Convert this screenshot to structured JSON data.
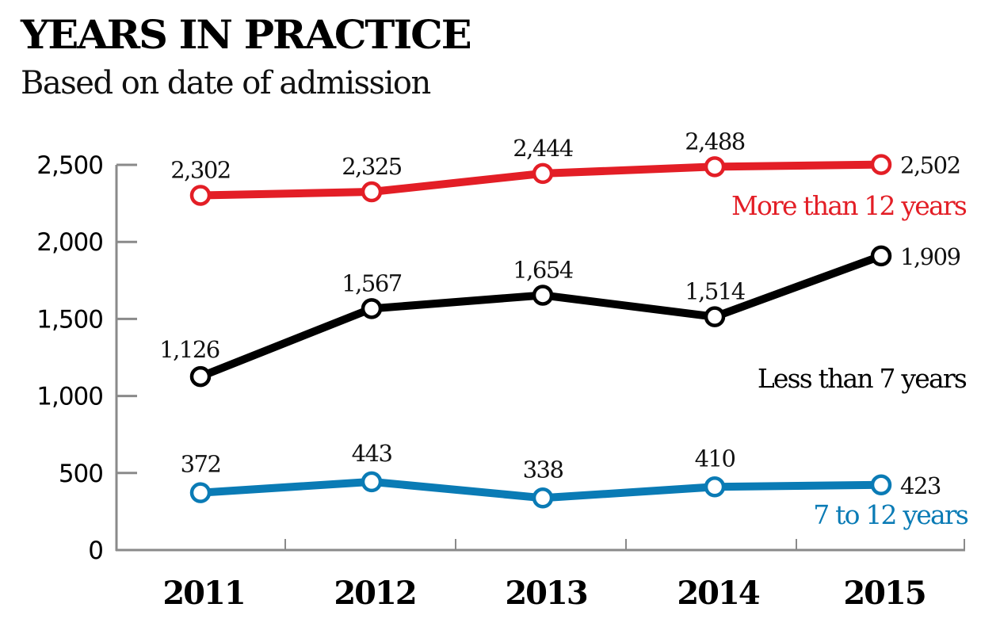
{
  "header": {
    "title": "YEARS IN PRACTICE",
    "subtitle": "Based on date of admission"
  },
  "chart_data": {
    "type": "line",
    "title": "YEARS IN PRACTICE",
    "subtitle": "Based on date of admission",
    "xlabel": "",
    "ylabel": "",
    "x": [
      "2011",
      "2012",
      "2013",
      "2014",
      "2015"
    ],
    "ylim": [
      0,
      2500
    ],
    "yticks": [
      0,
      500,
      1000,
      1500,
      2000,
      2500
    ],
    "ytick_labels": [
      "0",
      "500",
      "1,000",
      "1,500",
      "2,000",
      "2,500"
    ],
    "grid": false,
    "legend": "inline-right",
    "series": [
      {
        "name": "More than 12 years",
        "color": "#e31e26",
        "values": [
          2302,
          2325,
          2444,
          2488,
          2502
        ],
        "labels": [
          "2,302",
          "2,325",
          "2,444",
          "2,488",
          "2,502"
        ]
      },
      {
        "name": "Less than 7 years",
        "color": "#000000",
        "values": [
          1126,
          1567,
          1654,
          1514,
          1909
        ],
        "labels": [
          "1,126",
          "1,567",
          "1,654",
          "1,514",
          "1,909"
        ]
      },
      {
        "name": "7 to 12 years",
        "color": "#0a7bb5",
        "values": [
          372,
          443,
          338,
          410,
          423
        ],
        "labels": [
          "372",
          "443",
          "338",
          "410",
          "423"
        ]
      }
    ]
  }
}
